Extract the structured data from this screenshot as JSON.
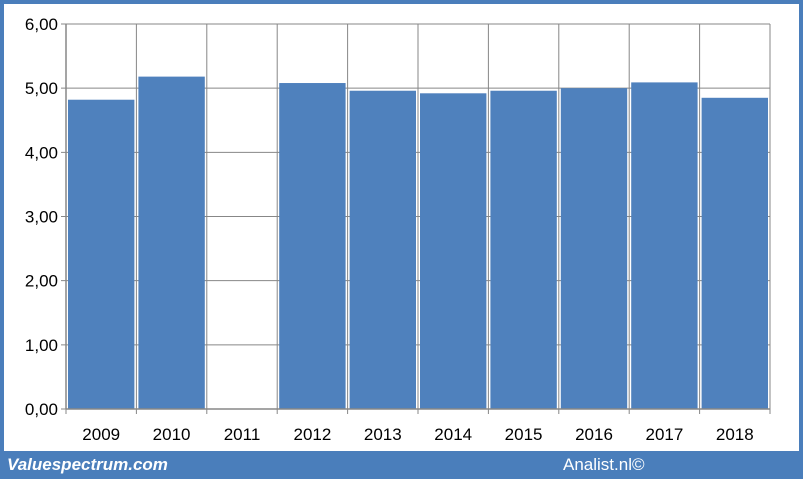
{
  "chart_data": {
    "type": "bar",
    "categories": [
      "2009",
      "2010",
      "2011",
      "2012",
      "2013",
      "2014",
      "2015",
      "2016",
      "2017",
      "2018"
    ],
    "values": [
      4.82,
      5.18,
      null,
      5.08,
      4.96,
      4.92,
      4.96,
      5.0,
      5.09,
      4.85
    ],
    "ylim": [
      0,
      6
    ],
    "yticks": [
      "0,00",
      "1,00",
      "2,00",
      "3,00",
      "4,00",
      "5,00",
      "6,00"
    ],
    "grid": true,
    "bar_color": "#4f81bd",
    "title": "",
    "xlabel": "",
    "ylabel": ""
  },
  "footer": {
    "left": "Valuespectrum.com",
    "right": "Analist.nl©"
  },
  "colors": {
    "border": "#4a7ebb",
    "gridline": "#878787",
    "bar": "#4f81bd"
  }
}
